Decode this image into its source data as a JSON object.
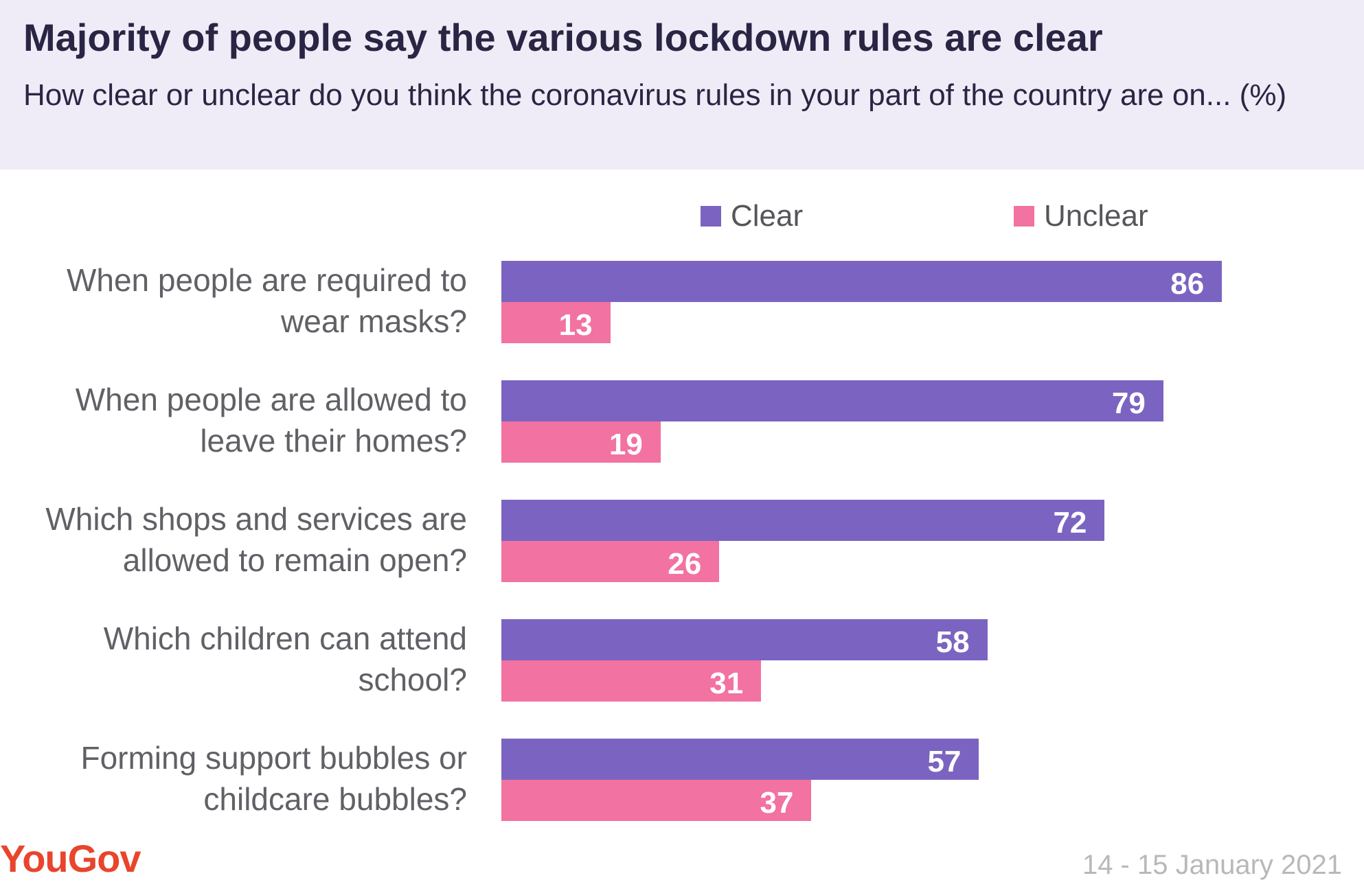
{
  "header": {
    "title": "Majority of people say the various lockdown rules are clear",
    "subtitle": "How clear or unclear do you think the coronavirus rules in your part of the country are on... (%)"
  },
  "chart_data": {
    "type": "bar",
    "orientation": "horizontal",
    "title": "Majority of people say the various lockdown rules are clear",
    "subtitle": "How clear or unclear do you think the coronavirus rules in your part of the country are on... (%)",
    "categories": [
      "When people are required to wear masks?",
      "When people are allowed to leave their homes?",
      "Which shops and services are allowed to remain open?",
      "Which children can attend school?",
      "Forming support bubbles or childcare bubbles?"
    ],
    "series": [
      {
        "name": "Clear",
        "color": "#7b64c1",
        "values": [
          86,
          79,
          72,
          58,
          57
        ]
      },
      {
        "name": "Unclear",
        "color": "#f272a1",
        "values": [
          13,
          19,
          26,
          31,
          37
        ]
      }
    ],
    "xlim": [
      0,
      100
    ],
    "grid": false,
    "legend_position": "top"
  },
  "footer": {
    "logo_text": "YouGov",
    "date": "14 - 15 January 2021"
  }
}
